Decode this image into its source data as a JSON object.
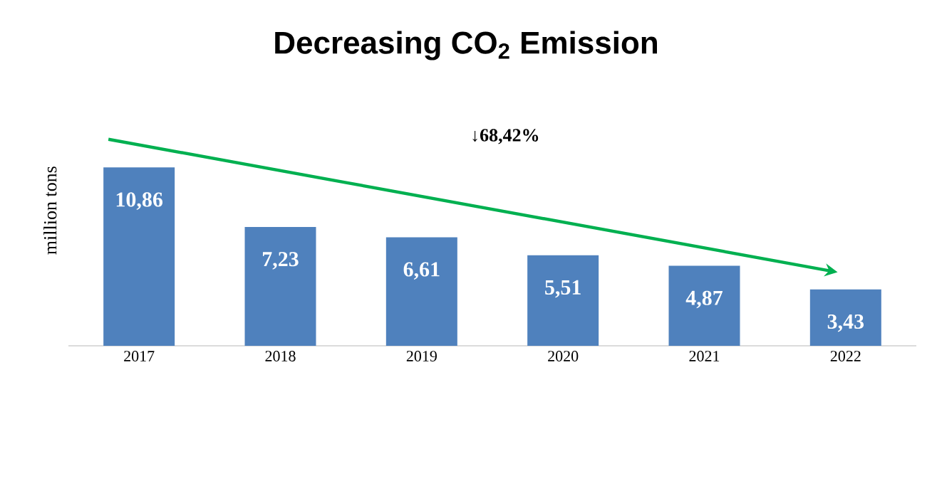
{
  "chart_data": {
    "type": "bar",
    "title": "Decreasing CO$_{2}$ Emission",
    "ylabel": "million tons",
    "categories": [
      "2017",
      "2018",
      "2019",
      "2020",
      "2021",
      "2022"
    ],
    "values": [
      10.86,
      7.23,
      6.61,
      5.51,
      4.87,
      3.43
    ],
    "value_labels": [
      "10,86",
      "7,23",
      "6,61",
      "5,51",
      "4,87",
      "3,43"
    ],
    "color": "#4f81bd",
    "annotations": [
      "↓68,42%"
    ]
  }
}
